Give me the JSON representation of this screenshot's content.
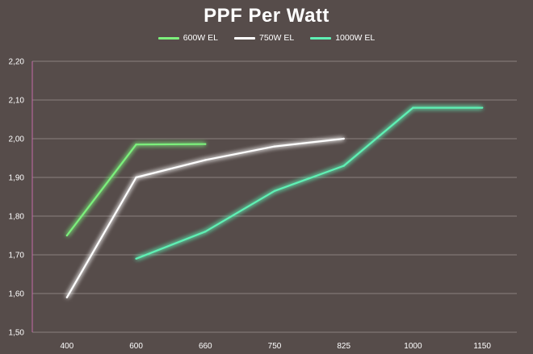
{
  "chart_data": {
    "type": "line",
    "title": "PPF Per Watt",
    "categories": [
      "400",
      "600",
      "660",
      "750",
      "825",
      "1000",
      "1150"
    ],
    "y_ticks": [
      "1,50",
      "1,60",
      "1,70",
      "1,80",
      "1,90",
      "2,00",
      "2,10",
      "2,20"
    ],
    "ylim": [
      1.5,
      2.2
    ],
    "grid": true,
    "legend_position": "top",
    "series": [
      {
        "name": "600W EL",
        "color": "#7cf07c",
        "values": [
          1.75,
          1.985,
          1.986,
          null,
          null,
          null,
          null
        ]
      },
      {
        "name": "750W EL",
        "color": "#ffffff",
        "values": [
          1.59,
          1.9,
          1.945,
          1.98,
          2.0,
          null,
          null
        ]
      },
      {
        "name": "1000W EL",
        "color": "#5ef0b4",
        "values": [
          null,
          1.69,
          1.76,
          1.865,
          1.93,
          2.08,
          2.08
        ]
      }
    ]
  }
}
